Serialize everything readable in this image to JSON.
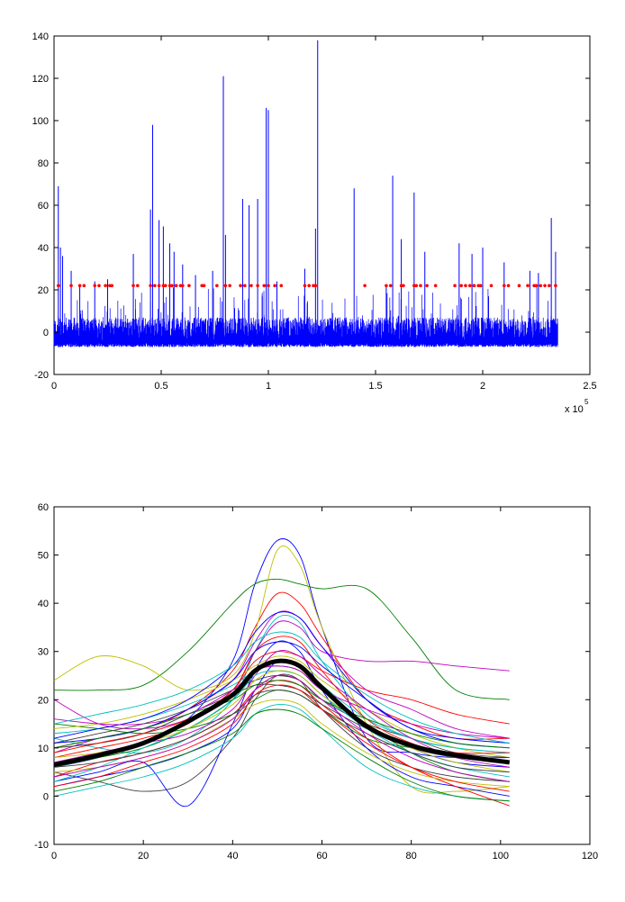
{
  "chart_data": [
    {
      "type": "line",
      "grid": false,
      "legend": "none",
      "xlim": [
        0,
        2.5
      ],
      "ylim": [
        -20,
        140
      ],
      "x_tick_labels": [
        "0",
        "0.5",
        "1",
        "1.5",
        "2",
        "2.5"
      ],
      "y_tick_labels": [
        "-20",
        "0",
        "20",
        "40",
        "60",
        "80",
        "100",
        "120",
        "140"
      ],
      "x_exponent_label": "x 10",
      "x_exponent_power": "5",
      "series": [
        {
          "kind": "signal",
          "color": "#0000ff",
          "x_extent": [
            0,
            2.35
          ],
          "baseline_range": [
            -7,
            5
          ],
          "peaks": [
            {
              "x": 0.02,
              "y": 69
            },
            {
              "x": 0.03,
              "y": 40
            },
            {
              "x": 0.04,
              "y": 36
            },
            {
              "x": 0.08,
              "y": 29
            },
            {
              "x": 0.12,
              "y": 22
            },
            {
              "x": 0.19,
              "y": 24
            },
            {
              "x": 0.25,
              "y": 25
            },
            {
              "x": 0.37,
              "y": 37
            },
            {
              "x": 0.45,
              "y": 58
            },
            {
              "x": 0.46,
              "y": 98
            },
            {
              "x": 0.49,
              "y": 53
            },
            {
              "x": 0.51,
              "y": 50
            },
            {
              "x": 0.54,
              "y": 42
            },
            {
              "x": 0.56,
              "y": 38
            },
            {
              "x": 0.6,
              "y": 32
            },
            {
              "x": 0.66,
              "y": 27
            },
            {
              "x": 0.74,
              "y": 29
            },
            {
              "x": 0.79,
              "y": 121
            },
            {
              "x": 0.8,
              "y": 46
            },
            {
              "x": 0.88,
              "y": 63
            },
            {
              "x": 0.91,
              "y": 60
            },
            {
              "x": 0.95,
              "y": 63
            },
            {
              "x": 0.99,
              "y": 106
            },
            {
              "x": 1.0,
              "y": 105
            },
            {
              "x": 1.04,
              "y": 24
            },
            {
              "x": 1.17,
              "y": 30
            },
            {
              "x": 1.22,
              "y": 49
            },
            {
              "x": 1.23,
              "y": 138
            },
            {
              "x": 1.4,
              "y": 68
            },
            {
              "x": 1.55,
              "y": 22
            },
            {
              "x": 1.58,
              "y": 74
            },
            {
              "x": 1.62,
              "y": 44
            },
            {
              "x": 1.68,
              "y": 66
            },
            {
              "x": 1.73,
              "y": 38
            },
            {
              "x": 1.89,
              "y": 42
            },
            {
              "x": 1.95,
              "y": 37
            },
            {
              "x": 2.0,
              "y": 40
            },
            {
              "x": 2.1,
              "y": 33
            },
            {
              "x": 2.22,
              "y": 29
            },
            {
              "x": 2.26,
              "y": 28
            },
            {
              "x": 2.32,
              "y": 54
            },
            {
              "x": 2.34,
              "y": 38
            }
          ]
        },
        {
          "kind": "markers",
          "color": "#ff0000",
          "y": 22,
          "x": [
            0.02,
            0.08,
            0.12,
            0.14,
            0.19,
            0.21,
            0.24,
            0.26,
            0.27,
            0.37,
            0.39,
            0.45,
            0.47,
            0.49,
            0.51,
            0.52,
            0.54,
            0.55,
            0.57,
            0.59,
            0.6,
            0.63,
            0.69,
            0.7,
            0.76,
            0.8,
            0.82,
            0.87,
            0.89,
            0.92,
            0.95,
            0.98,
            1.0,
            1.03,
            1.06,
            1.17,
            1.19,
            1.21,
            1.22,
            1.45,
            1.55,
            1.57,
            1.62,
            1.63,
            1.68,
            1.69,
            1.71,
            1.74,
            1.78,
            1.87,
            1.9,
            1.92,
            1.94,
            1.96,
            1.98,
            1.99,
            2.04,
            2.1,
            2.12,
            2.17,
            2.21,
            2.24,
            2.25,
            2.27,
            2.29,
            2.31,
            2.34
          ]
        }
      ]
    },
    {
      "type": "line",
      "grid": false,
      "legend": "none",
      "xlim": [
        0,
        120
      ],
      "ylim": [
        -10,
        60
      ],
      "x_tick_labels": [
        "0",
        "20",
        "40",
        "60",
        "80",
        "100",
        "120"
      ],
      "y_tick_labels": [
        "-10",
        "0",
        "10",
        "20",
        "30",
        "40",
        "50",
        "60"
      ],
      "x": [
        0,
        10,
        20,
        30,
        40,
        45,
        50,
        55,
        60,
        70,
        80,
        90,
        102
      ],
      "series": [
        {
          "color": "#0000ff",
          "values": [
            6,
            8,
            11,
            16,
            28,
            44,
            53,
            50,
            35,
            12,
            9,
            8,
            8
          ]
        },
        {
          "color": "#008000",
          "values": [
            22,
            22,
            23,
            30,
            40,
            44,
            45,
            44,
            43,
            43,
            33,
            22,
            20
          ]
        },
        {
          "color": "#ff0000",
          "values": [
            10,
            12,
            14,
            18,
            26,
            35,
            42,
            40,
            33,
            20,
            15,
            12,
            12
          ]
        },
        {
          "color": "#00bfbf",
          "values": [
            12,
            10,
            9,
            12,
            20,
            30,
            37,
            36,
            28,
            17,
            12,
            10,
            9
          ]
        },
        {
          "color": "#bf00bf",
          "values": [
            20,
            15,
            14,
            16,
            22,
            30,
            36,
            35,
            30,
            28,
            28,
            27,
            26
          ]
        },
        {
          "color": "#bfbf00",
          "values": [
            24,
            29,
            27,
            22,
            25,
            34,
            51,
            48,
            35,
            15,
            2,
            1,
            2
          ]
        },
        {
          "color": "#3f3f3f",
          "values": [
            5,
            3,
            1,
            3,
            12,
            20,
            25,
            24,
            18,
            10,
            6,
            4,
            3
          ]
        },
        {
          "color": "#0000ff",
          "values": [
            3,
            5,
            7,
            -2,
            15,
            26,
            32,
            30,
            22,
            10,
            4,
            2,
            0
          ]
        },
        {
          "color": "#008000",
          "values": [
            15,
            14,
            13,
            14,
            17,
            20,
            22,
            21,
            18,
            12,
            10,
            8,
            7
          ]
        },
        {
          "color": "#ff0000",
          "values": [
            8,
            10,
            12,
            15,
            22,
            28,
            30,
            29,
            26,
            22,
            20,
            17,
            15
          ]
        },
        {
          "color": "#00bfbf",
          "values": [
            0,
            2,
            4,
            7,
            12,
            17,
            19,
            18,
            14,
            6,
            2,
            0,
            -1
          ]
        },
        {
          "color": "#bf00bf",
          "values": [
            9,
            12,
            14,
            18,
            24,
            32,
            38,
            37,
            31,
            22,
            18,
            14,
            12
          ]
        },
        {
          "color": "#bfbf00",
          "values": [
            14,
            15,
            17,
            20,
            24,
            27,
            29,
            28,
            24,
            18,
            13,
            10,
            8
          ]
        },
        {
          "color": "#3f3f3f",
          "values": [
            11,
            13,
            15,
            18,
            22,
            24,
            25,
            24,
            20,
            15,
            12,
            9,
            8
          ]
        },
        {
          "color": "#0000ff",
          "values": [
            2,
            4,
            6,
            9,
            14,
            22,
            28,
            27,
            22,
            15,
            10,
            7,
            6
          ]
        },
        {
          "color": "#008000",
          "values": [
            6,
            8,
            10,
            14,
            20,
            26,
            27,
            26,
            22,
            15,
            9,
            5,
            3
          ]
        },
        {
          "color": "#ff0000",
          "values": [
            4,
            7,
            9,
            12,
            17,
            22,
            24,
            23,
            19,
            12,
            6,
            2,
            -2
          ]
        },
        {
          "color": "#00bfbf",
          "values": [
            13,
            14,
            16,
            19,
            23,
            26,
            28,
            27,
            23,
            16,
            12,
            10,
            9
          ]
        },
        {
          "color": "#bf00bf",
          "values": [
            7,
            9,
            11,
            13,
            18,
            25,
            30,
            29,
            25,
            18,
            12,
            8,
            6
          ]
        },
        {
          "color": "#bfbf00",
          "values": [
            5,
            6,
            8,
            11,
            16,
            19,
            20,
            19,
            15,
            9,
            5,
            3,
            2
          ]
        },
        {
          "color": "#3f3f3f",
          "values": [
            10,
            11,
            13,
            17,
            21,
            23,
            23,
            22,
            19,
            14,
            10,
            8,
            7
          ]
        },
        {
          "color": "#0000ff",
          "values": [
            12,
            14,
            16,
            20,
            27,
            34,
            38,
            37,
            31,
            20,
            14,
            11,
            10
          ]
        },
        {
          "color": "#008000",
          "values": [
            1,
            3,
            6,
            9,
            13,
            17,
            18,
            17,
            14,
            8,
            3,
            0,
            -1
          ]
        },
        {
          "color": "#ff0000",
          "values": [
            9,
            11,
            13,
            16,
            22,
            30,
            33,
            32,
            26,
            16,
            11,
            9,
            9
          ]
        },
        {
          "color": "#00bfbf",
          "values": [
            3,
            6,
            10,
            14,
            20,
            25,
            26,
            25,
            21,
            14,
            9,
            6,
            4
          ]
        },
        {
          "color": "#bf00bf",
          "values": [
            16,
            15,
            15,
            17,
            22,
            26,
            27,
            26,
            22,
            18,
            15,
            13,
            12
          ]
        },
        {
          "color": "#bfbf00",
          "values": [
            8,
            9,
            11,
            14,
            19,
            24,
            26,
            25,
            21,
            15,
            10,
            7,
            5
          ]
        },
        {
          "color": "#3f3f3f",
          "values": [
            6,
            7,
            9,
            12,
            17,
            21,
            22,
            21,
            18,
            13,
            9,
            6,
            5
          ]
        },
        {
          "color": "#0000ff",
          "values": [
            11,
            12,
            14,
            18,
            24,
            30,
            32,
            31,
            27,
            20,
            14,
            12,
            11
          ]
        },
        {
          "color": "#008000",
          "values": [
            10,
            12,
            14,
            17,
            20,
            23,
            24,
            23,
            20,
            16,
            13,
            11,
            10
          ]
        },
        {
          "color": "#ff0000",
          "values": [
            2,
            4,
            7,
            10,
            15,
            21,
            23,
            22,
            18,
            11,
            6,
            3,
            1
          ]
        },
        {
          "color": "#00bfbf",
          "values": [
            15,
            17,
            19,
            22,
            27,
            32,
            34,
            33,
            28,
            21,
            16,
            13,
            11
          ]
        },
        {
          "color": "#bf00bf",
          "values": [
            4,
            6,
            8,
            11,
            16,
            22,
            25,
            24,
            20,
            13,
            8,
            5,
            3
          ]
        },
        {
          "color": "#000000",
          "width": 5,
          "values": [
            6.5,
            8.5,
            11,
            15.5,
            21,
            26,
            28,
            27,
            22.5,
            14.5,
            10.5,
            8.5,
            7
          ]
        }
      ]
    }
  ]
}
